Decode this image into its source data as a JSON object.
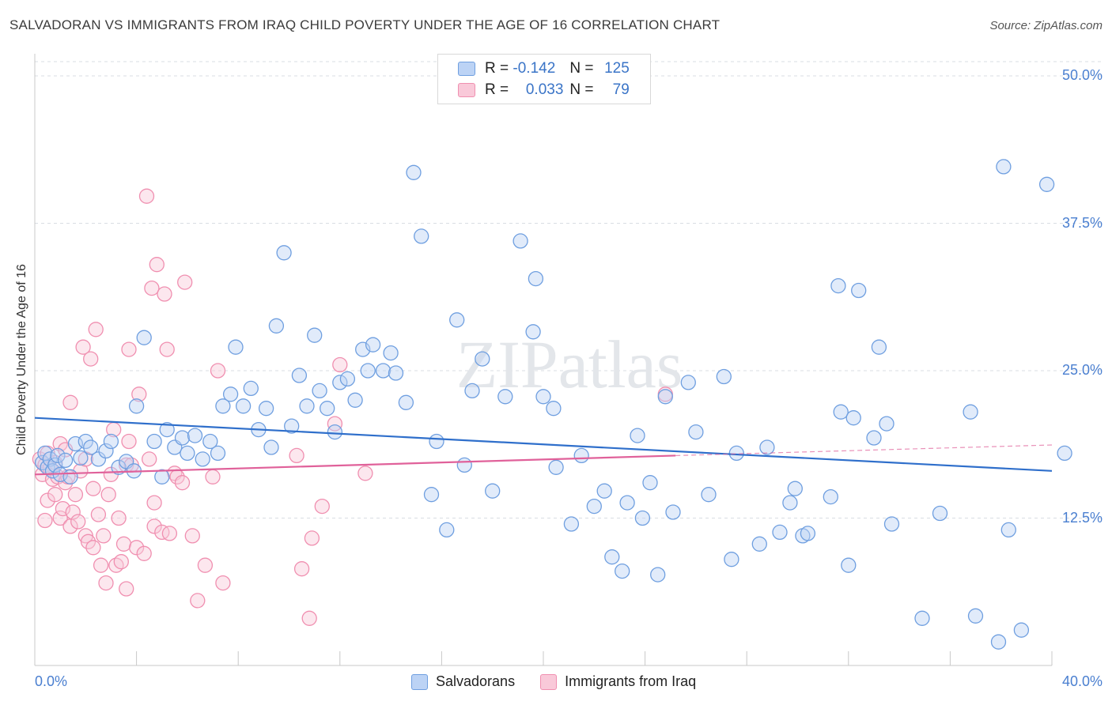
{
  "title": "SALVADORAN VS IMMIGRANTS FROM IRAQ CHILD POVERTY UNDER THE AGE OF 16 CORRELATION CHART",
  "source": "Source: ZipAtlas.com",
  "watermark": "ZIPatlas",
  "legend_box": {
    "rows": [
      {
        "r_label": "R =",
        "r_value": "-0.142",
        "n_label": "N =",
        "n_value": "125"
      },
      {
        "r_label": "R =",
        "r_value": "0.033",
        "n_label": "N =",
        "n_value": "79"
      }
    ]
  },
  "chart_data": {
    "type": "scatter",
    "title": "SALVADORAN VS IMMIGRANTS FROM IRAQ CHILD POVERTY UNDER THE AGE OF 16 CORRELATION CHART",
    "xlabel": "",
    "ylabel": "Child Poverty Under the Age of 16",
    "xlim": [
      0,
      40
    ],
    "ylim": [
      0,
      50
    ],
    "x_tick_labels": [
      "0.0%",
      "40.0%"
    ],
    "y_tick_values": [
      12.5,
      25.0,
      37.5,
      50.0
    ],
    "y_tick_labels": [
      "12.5%",
      "25.0%",
      "37.5%",
      "50.0%"
    ],
    "grid": true,
    "legend_position": "bottom",
    "series": [
      {
        "name": "Salvadorans",
        "color": "#6f9fe0",
        "line_color": "#2f6fcb",
        "trend": {
          "x": [
            0,
            40
          ],
          "y": [
            21.0,
            16.5
          ]
        },
        "points": [
          [
            0.3,
            17.2
          ],
          [
            0.4,
            18.0
          ],
          [
            0.5,
            16.8
          ],
          [
            0.6,
            17.5
          ],
          [
            0.7,
            16.5
          ],
          [
            0.8,
            17.0
          ],
          [
            0.9,
            17.8
          ],
          [
            1.0,
            16.2
          ],
          [
            1.2,
            17.4
          ],
          [
            1.4,
            16.0
          ],
          [
            1.6,
            18.8
          ],
          [
            1.8,
            17.6
          ],
          [
            2.0,
            19.0
          ],
          [
            2.2,
            18.5
          ],
          [
            2.5,
            17.5
          ],
          [
            2.8,
            18.2
          ],
          [
            3.0,
            19.0
          ],
          [
            3.3,
            16.8
          ],
          [
            3.6,
            17.3
          ],
          [
            3.9,
            16.5
          ],
          [
            4.0,
            22.0
          ],
          [
            4.3,
            27.8
          ],
          [
            4.7,
            19.0
          ],
          [
            5.0,
            16.0
          ],
          [
            5.2,
            20.0
          ],
          [
            5.5,
            18.5
          ],
          [
            5.8,
            19.3
          ],
          [
            6.0,
            18.0
          ],
          [
            6.3,
            19.5
          ],
          [
            6.6,
            17.5
          ],
          [
            6.9,
            19.0
          ],
          [
            7.2,
            18.0
          ],
          [
            7.4,
            22.0
          ],
          [
            7.7,
            23.0
          ],
          [
            7.9,
            27.0
          ],
          [
            8.2,
            22.0
          ],
          [
            8.5,
            23.5
          ],
          [
            8.8,
            20.0
          ],
          [
            9.1,
            21.8
          ],
          [
            9.3,
            18.5
          ],
          [
            9.5,
            28.8
          ],
          [
            9.8,
            35.0
          ],
          [
            10.1,
            20.3
          ],
          [
            10.4,
            24.6
          ],
          [
            10.7,
            22.0
          ],
          [
            11.0,
            28.0
          ],
          [
            11.2,
            23.3
          ],
          [
            11.5,
            21.8
          ],
          [
            11.8,
            19.8
          ],
          [
            12.0,
            24.0
          ],
          [
            12.3,
            24.3
          ],
          [
            12.6,
            22.5
          ],
          [
            12.9,
            26.8
          ],
          [
            13.1,
            25.0
          ],
          [
            13.3,
            27.2
          ],
          [
            13.7,
            25.0
          ],
          [
            14.0,
            26.5
          ],
          [
            14.2,
            24.8
          ],
          [
            14.6,
            22.3
          ],
          [
            14.9,
            41.8
          ],
          [
            15.2,
            36.4
          ],
          [
            15.6,
            14.5
          ],
          [
            15.8,
            19.0
          ],
          [
            16.2,
            11.5
          ],
          [
            16.6,
            29.3
          ],
          [
            16.9,
            17.0
          ],
          [
            17.2,
            23.3
          ],
          [
            17.6,
            26.0
          ],
          [
            18.0,
            14.8
          ],
          [
            18.5,
            22.8
          ],
          [
            19.1,
            36.0
          ],
          [
            19.6,
            28.3
          ],
          [
            19.7,
            32.8
          ],
          [
            20.0,
            22.8
          ],
          [
            20.4,
            21.8
          ],
          [
            20.5,
            16.8
          ],
          [
            21.1,
            12.0
          ],
          [
            21.5,
            17.8
          ],
          [
            22.0,
            13.5
          ],
          [
            22.4,
            14.8
          ],
          [
            22.7,
            9.2
          ],
          [
            23.1,
            8.0
          ],
          [
            23.3,
            13.8
          ],
          [
            23.7,
            19.5
          ],
          [
            23.9,
            12.5
          ],
          [
            24.2,
            15.5
          ],
          [
            24.5,
            7.7
          ],
          [
            24.8,
            22.8
          ],
          [
            25.1,
            13.0
          ],
          [
            25.7,
            24.0
          ],
          [
            26.0,
            19.8
          ],
          [
            26.5,
            14.5
          ],
          [
            27.1,
            24.5
          ],
          [
            27.4,
            9.0
          ],
          [
            27.6,
            18.0
          ],
          [
            28.5,
            10.3
          ],
          [
            28.8,
            18.5
          ],
          [
            29.3,
            11.3
          ],
          [
            29.7,
            13.8
          ],
          [
            29.9,
            15.0
          ],
          [
            30.2,
            11.0
          ],
          [
            30.4,
            11.2
          ],
          [
            31.3,
            14.3
          ],
          [
            31.6,
            32.2
          ],
          [
            31.7,
            21.5
          ],
          [
            32.0,
            8.5
          ],
          [
            32.2,
            21.0
          ],
          [
            32.4,
            31.8
          ],
          [
            33.0,
            19.3
          ],
          [
            33.2,
            27.0
          ],
          [
            33.5,
            20.5
          ],
          [
            33.7,
            12.0
          ],
          [
            34.9,
            4.0
          ],
          [
            35.6,
            12.9
          ],
          [
            36.8,
            21.5
          ],
          [
            37.0,
            4.2
          ],
          [
            37.9,
            2.0
          ],
          [
            38.1,
            42.3
          ],
          [
            38.3,
            11.5
          ],
          [
            38.8,
            3.0
          ],
          [
            39.8,
            40.8
          ],
          [
            40.5,
            18.0
          ]
        ]
      },
      {
        "name": "Immigrants from Iraq",
        "color": "#f08fb0",
        "line_color": "#e0619a",
        "trend": {
          "x": [
            0,
            25.2
          ],
          "y": [
            16.2,
            17.8
          ]
        },
        "trend_extension": {
          "x": [
            25.2,
            40
          ],
          "y": [
            17.8,
            18.7
          ]
        },
        "points": [
          [
            0.2,
            17.5
          ],
          [
            0.3,
            16.2
          ],
          [
            0.4,
            17.0
          ],
          [
            0.4,
            12.3
          ],
          [
            0.5,
            18.0
          ],
          [
            0.5,
            14.0
          ],
          [
            0.6,
            16.7
          ],
          [
            0.7,
            15.8
          ],
          [
            0.8,
            17.2
          ],
          [
            0.8,
            14.5
          ],
          [
            0.9,
            16.0
          ],
          [
            1.0,
            12.5
          ],
          [
            1.0,
            18.8
          ],
          [
            1.1,
            13.3
          ],
          [
            1.2,
            15.5
          ],
          [
            1.2,
            18.3
          ],
          [
            1.3,
            16.0
          ],
          [
            1.4,
            22.3
          ],
          [
            1.4,
            11.8
          ],
          [
            1.5,
            13.0
          ],
          [
            1.6,
            14.5
          ],
          [
            1.7,
            12.2
          ],
          [
            1.8,
            16.5
          ],
          [
            1.9,
            27.0
          ],
          [
            2.0,
            17.5
          ],
          [
            2.0,
            11.0
          ],
          [
            2.1,
            10.5
          ],
          [
            2.2,
            26.0
          ],
          [
            2.3,
            15.0
          ],
          [
            2.3,
            10.0
          ],
          [
            2.4,
            28.5
          ],
          [
            2.5,
            12.8
          ],
          [
            2.6,
            8.5
          ],
          [
            2.7,
            11.0
          ],
          [
            2.8,
            7.0
          ],
          [
            2.9,
            14.5
          ],
          [
            3.0,
            16.2
          ],
          [
            3.1,
            20.0
          ],
          [
            3.2,
            8.5
          ],
          [
            3.3,
            12.5
          ],
          [
            3.4,
            8.8
          ],
          [
            3.5,
            10.3
          ],
          [
            3.6,
            6.5
          ],
          [
            3.6,
            17.0
          ],
          [
            3.7,
            19.0
          ],
          [
            3.7,
            26.8
          ],
          [
            3.8,
            17.0
          ],
          [
            4.0,
            10.0
          ],
          [
            4.1,
            23.0
          ],
          [
            4.3,
            9.5
          ],
          [
            4.4,
            39.8
          ],
          [
            4.5,
            17.5
          ],
          [
            4.6,
            32.0
          ],
          [
            4.7,
            13.8
          ],
          [
            4.7,
            11.8
          ],
          [
            4.8,
            34.0
          ],
          [
            5.0,
            11.3
          ],
          [
            5.1,
            31.5
          ],
          [
            5.2,
            26.8
          ],
          [
            5.3,
            11.2
          ],
          [
            5.5,
            16.3
          ],
          [
            5.6,
            16.0
          ],
          [
            5.8,
            15.5
          ],
          [
            5.9,
            32.5
          ],
          [
            6.2,
            11.0
          ],
          [
            6.4,
            5.5
          ],
          [
            6.7,
            8.5
          ],
          [
            7.0,
            16.0
          ],
          [
            7.2,
            25.0
          ],
          [
            7.4,
            7.0
          ],
          [
            10.3,
            17.8
          ],
          [
            10.5,
            8.2
          ],
          [
            10.8,
            4.0
          ],
          [
            10.9,
            10.8
          ],
          [
            11.3,
            13.5
          ],
          [
            11.8,
            20.5
          ],
          [
            12.0,
            25.5
          ],
          [
            13.0,
            16.3
          ],
          [
            24.8,
            23.0
          ]
        ]
      }
    ]
  }
}
